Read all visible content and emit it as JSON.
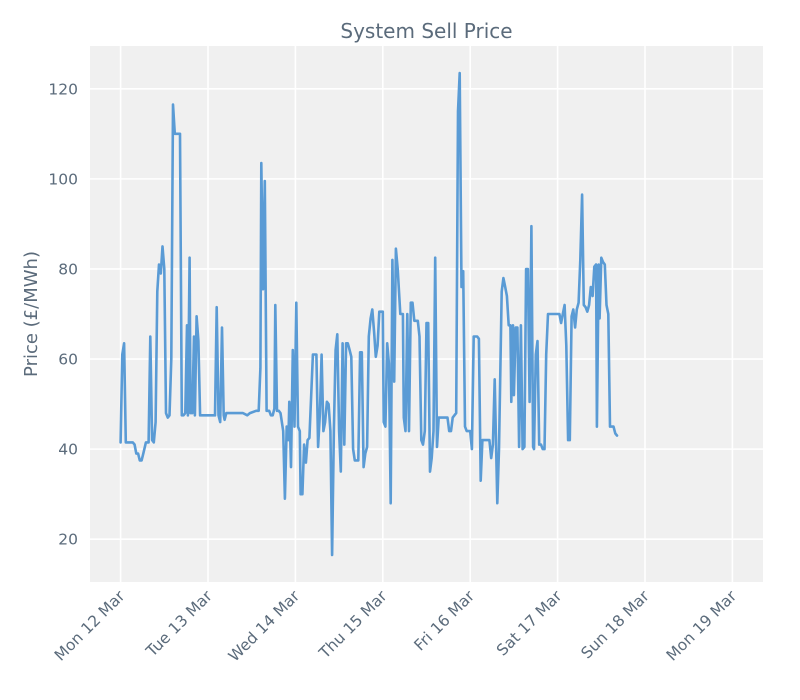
{
  "chart_data": {
    "type": "line",
    "title": "System Sell Price",
    "xlabel": "",
    "ylabel": "Price (£/MWh)",
    "grid": true,
    "x_unit": "days since Mon 12 Mar 00:00",
    "xlim": [
      -0.35,
      7.35
    ],
    "ylim": [
      10.5,
      129.5
    ],
    "y_ticks": [
      20,
      40,
      60,
      80,
      100,
      120
    ],
    "x_ticks": [
      {
        "value": 0,
        "label": "Mon 12 Mar"
      },
      {
        "value": 1,
        "label": "Tue 13 Mar"
      },
      {
        "value": 2,
        "label": "Wed 14 Mar"
      },
      {
        "value": 3,
        "label": "Thu 15 Mar"
      },
      {
        "value": 4,
        "label": "Fri 16 Mar"
      },
      {
        "value": 5,
        "label": "Sat 17 Mar"
      },
      {
        "value": 6,
        "label": "Sun 18 Mar"
      },
      {
        "value": 7,
        "label": "Mon 19 Mar"
      }
    ],
    "series": [
      {
        "name": "System Sell Price",
        "color": "#5a9bd5",
        "points": [
          [
            0.0,
            41.5
          ],
          [
            0.02,
            61
          ],
          [
            0.04,
            63.5
          ],
          [
            0.06,
            41.5
          ],
          [
            0.1,
            41.5
          ],
          [
            0.14,
            41.5
          ],
          [
            0.16,
            41
          ],
          [
            0.18,
            39
          ],
          [
            0.2,
            39
          ],
          [
            0.22,
            37.5
          ],
          [
            0.24,
            37.5
          ],
          [
            0.26,
            39
          ],
          [
            0.29,
            41.5
          ],
          [
            0.32,
            41.5
          ],
          [
            0.34,
            65
          ],
          [
            0.36,
            42
          ],
          [
            0.38,
            41.5
          ],
          [
            0.4,
            46
          ],
          [
            0.42,
            75
          ],
          [
            0.44,
            81
          ],
          [
            0.46,
            79
          ],
          [
            0.48,
            85
          ],
          [
            0.5,
            80
          ],
          [
            0.52,
            48
          ],
          [
            0.54,
            47
          ],
          [
            0.56,
            47.5
          ],
          [
            0.58,
            60
          ],
          [
            0.6,
            116.5
          ],
          [
            0.62,
            110
          ],
          [
            0.64,
            110
          ],
          [
            0.66,
            110
          ],
          [
            0.68,
            110
          ],
          [
            0.7,
            47.5
          ],
          [
            0.72,
            47.5
          ],
          [
            0.74,
            48
          ],
          [
            0.76,
            67.5
          ],
          [
            0.77,
            47.5
          ],
          [
            0.79,
            82.5
          ],
          [
            0.8,
            48
          ],
          [
            0.82,
            48
          ],
          [
            0.84,
            65
          ],
          [
            0.85,
            47.5
          ],
          [
            0.87,
            69.5
          ],
          [
            0.89,
            64
          ],
          [
            0.91,
            47.5
          ],
          [
            0.95,
            47.5
          ],
          [
            1.0,
            47.5
          ],
          [
            1.05,
            47.5
          ],
          [
            1.08,
            47.5
          ],
          [
            1.1,
            71.5
          ],
          [
            1.12,
            47.5
          ],
          [
            1.14,
            46
          ],
          [
            1.16,
            67
          ],
          [
            1.18,
            47.5
          ],
          [
            1.19,
            46.5
          ],
          [
            1.21,
            48
          ],
          [
            1.3,
            48
          ],
          [
            1.4,
            48
          ],
          [
            1.45,
            47.5
          ],
          [
            1.48,
            48
          ],
          [
            1.55,
            48.5
          ],
          [
            1.58,
            48.5
          ],
          [
            1.6,
            58
          ],
          [
            1.61,
            103.5
          ],
          [
            1.63,
            75.5
          ],
          [
            1.65,
            99.5
          ],
          [
            1.67,
            48.5
          ],
          [
            1.7,
            48.5
          ],
          [
            1.72,
            47.5
          ],
          [
            1.74,
            47.5
          ],
          [
            1.76,
            49
          ],
          [
            1.77,
            72
          ],
          [
            1.79,
            48.5
          ],
          [
            1.81,
            48.5
          ],
          [
            1.83,
            48
          ],
          [
            1.86,
            44
          ],
          [
            1.88,
            29
          ],
          [
            1.9,
            45
          ],
          [
            1.92,
            42
          ],
          [
            1.93,
            50.5
          ],
          [
            1.95,
            36
          ],
          [
            1.97,
            62
          ],
          [
            1.99,
            45
          ],
          [
            2.01,
            72.5
          ],
          [
            2.03,
            45
          ],
          [
            2.05,
            44
          ],
          [
            2.06,
            30
          ],
          [
            2.08,
            30
          ],
          [
            2.1,
            41
          ],
          [
            2.12,
            37
          ],
          [
            2.14,
            42
          ],
          [
            2.16,
            42.5
          ],
          [
            2.2,
            61
          ],
          [
            2.24,
            61
          ],
          [
            2.26,
            40.5
          ],
          [
            2.28,
            48
          ],
          [
            2.3,
            61
          ],
          [
            2.32,
            44
          ],
          [
            2.34,
            46
          ],
          [
            2.36,
            50.5
          ],
          [
            2.38,
            50
          ],
          [
            2.4,
            44
          ],
          [
            2.42,
            16.5
          ],
          [
            2.44,
            44.5
          ],
          [
            2.46,
            62
          ],
          [
            2.48,
            65.5
          ],
          [
            2.5,
            44
          ],
          [
            2.52,
            35
          ],
          [
            2.54,
            63.5
          ],
          [
            2.56,
            41
          ],
          [
            2.58,
            63.5
          ],
          [
            2.6,
            63.5
          ],
          [
            2.62,
            62
          ],
          [
            2.64,
            60.5
          ],
          [
            2.66,
            40
          ],
          [
            2.68,
            37.5
          ],
          [
            2.72,
            37.5
          ],
          [
            2.74,
            61.5
          ],
          [
            2.76,
            61.5
          ],
          [
            2.78,
            36
          ],
          [
            2.8,
            39
          ],
          [
            2.82,
            40.5
          ],
          [
            2.84,
            65
          ],
          [
            2.86,
            69
          ],
          [
            2.88,
            71
          ],
          [
            2.9,
            66
          ],
          [
            2.92,
            60.5
          ],
          [
            2.94,
            63
          ],
          [
            2.96,
            70.5
          ],
          [
            3.0,
            70.5
          ],
          [
            3.01,
            46
          ],
          [
            3.03,
            45
          ],
          [
            3.05,
            63.5
          ],
          [
            3.07,
            59
          ],
          [
            3.09,
            28
          ],
          [
            3.11,
            82
          ],
          [
            3.13,
            55
          ],
          [
            3.15,
            84.5
          ],
          [
            3.17,
            80
          ],
          [
            3.2,
            70
          ],
          [
            3.23,
            70
          ],
          [
            3.24,
            47
          ],
          [
            3.26,
            44
          ],
          [
            3.28,
            70
          ],
          [
            3.3,
            44
          ],
          [
            3.32,
            72.5
          ],
          [
            3.34,
            72.5
          ],
          [
            3.36,
            68.5
          ],
          [
            3.4,
            68.5
          ],
          [
            3.42,
            65
          ],
          [
            3.44,
            42
          ],
          [
            3.46,
            41
          ],
          [
            3.48,
            44
          ],
          [
            3.5,
            68
          ],
          [
            3.52,
            68
          ],
          [
            3.54,
            35
          ],
          [
            3.56,
            38
          ],
          [
            3.58,
            44
          ],
          [
            3.6,
            82.5
          ],
          [
            3.62,
            40.5
          ],
          [
            3.64,
            47
          ],
          [
            3.68,
            47
          ],
          [
            3.72,
            47
          ],
          [
            3.74,
            47
          ],
          [
            3.76,
            44
          ],
          [
            3.78,
            44
          ],
          [
            3.8,
            47
          ],
          [
            3.84,
            48
          ],
          [
            3.86,
            115
          ],
          [
            3.88,
            123.5
          ],
          [
            3.9,
            76
          ],
          [
            3.92,
            79.5
          ],
          [
            3.94,
            45
          ],
          [
            3.96,
            44
          ],
          [
            3.98,
            44
          ],
          [
            4.0,
            44
          ],
          [
            4.02,
            40
          ],
          [
            4.04,
            65
          ],
          [
            4.08,
            65
          ],
          [
            4.1,
            64.5
          ],
          [
            4.12,
            33
          ],
          [
            4.14,
            42
          ],
          [
            4.18,
            42
          ],
          [
            4.22,
            42
          ],
          [
            4.24,
            38
          ],
          [
            4.26,
            41
          ],
          [
            4.28,
            55.5
          ],
          [
            4.31,
            28
          ],
          [
            4.33,
            40
          ],
          [
            4.36,
            75
          ],
          [
            4.38,
            78
          ],
          [
            4.4,
            76
          ],
          [
            4.42,
            74
          ],
          [
            4.44,
            67.5
          ],
          [
            4.46,
            67.5
          ],
          [
            4.47,
            50.5
          ],
          [
            4.49,
            67.5
          ],
          [
            4.5,
            52
          ],
          [
            4.52,
            67
          ],
          [
            4.54,
            67
          ],
          [
            4.56,
            40.5
          ],
          [
            4.58,
            67.5
          ],
          [
            4.6,
            40
          ],
          [
            4.62,
            40.5
          ],
          [
            4.64,
            80
          ],
          [
            4.66,
            80
          ],
          [
            4.68,
            50.5
          ],
          [
            4.7,
            89.5
          ],
          [
            4.72,
            40.5
          ],
          [
            4.73,
            40
          ],
          [
            4.75,
            61
          ],
          [
            4.77,
            64
          ],
          [
            4.79,
            41
          ],
          [
            4.81,
            41
          ],
          [
            4.83,
            40
          ],
          [
            4.85,
            40
          ],
          [
            4.87,
            61
          ],
          [
            4.89,
            70
          ],
          [
            4.92,
            70
          ],
          [
            4.96,
            70
          ],
          [
            5.0,
            70
          ],
          [
            5.02,
            70
          ],
          [
            5.04,
            68
          ],
          [
            5.06,
            70
          ],
          [
            5.08,
            72
          ],
          [
            5.1,
            63
          ],
          [
            5.12,
            42
          ],
          [
            5.14,
            42
          ],
          [
            5.16,
            69.5
          ],
          [
            5.18,
            71
          ],
          [
            5.2,
            67
          ],
          [
            5.22,
            71
          ],
          [
            5.24,
            72.5
          ],
          [
            5.26,
            82
          ],
          [
            5.28,
            96.5
          ],
          [
            5.3,
            72
          ],
          [
            5.32,
            71.5
          ],
          [
            5.34,
            70.5
          ],
          [
            5.36,
            72
          ],
          [
            5.38,
            76
          ],
          [
            5.4,
            74
          ],
          [
            5.42,
            80.5
          ],
          [
            5.44,
            81
          ],
          [
            5.45,
            45
          ],
          [
            5.47,
            81
          ],
          [
            5.48,
            69
          ],
          [
            5.5,
            82.5
          ],
          [
            5.52,
            81.5
          ],
          [
            5.54,
            81
          ],
          [
            5.56,
            72
          ],
          [
            5.58,
            70
          ],
          [
            5.6,
            45
          ],
          [
            5.62,
            45
          ],
          [
            5.64,
            45
          ],
          [
            5.66,
            43.5
          ],
          [
            5.68,
            43
          ]
        ]
      }
    ]
  }
}
